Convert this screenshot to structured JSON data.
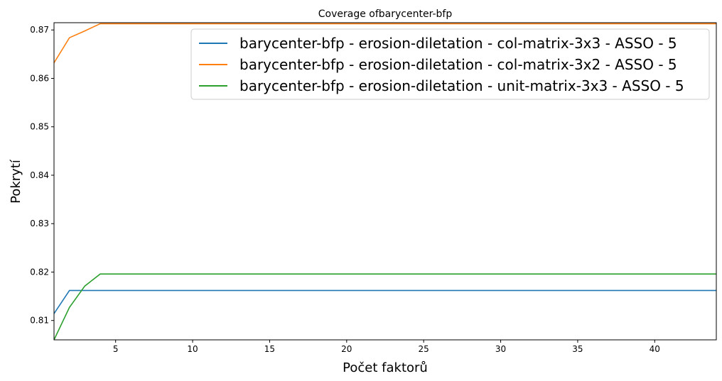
{
  "chart_data": {
    "type": "line",
    "title": "Coverage ofbarycenter-bfp",
    "xlabel": "Počet faktorů",
    "ylabel": "Pokrytí",
    "xlim": [
      1,
      44
    ],
    "ylim": [
      0.806,
      0.8715
    ],
    "xticks": [
      5,
      10,
      15,
      20,
      25,
      30,
      35,
      40
    ],
    "yticks": [
      0.81,
      0.82,
      0.83,
      0.84,
      0.85,
      0.86,
      0.87
    ],
    "grid": false,
    "legend_position": "top-right",
    "series": [
      {
        "name": "barycenter-bfp - erosion-diletation - col-matrix-3x3 - ASSO - 5",
        "color": "#1f77b4",
        "x": [
          1,
          2,
          3,
          4,
          44
        ],
        "y": [
          0.8114,
          0.8162,
          0.8162,
          0.8162,
          0.8162
        ]
      },
      {
        "name": "barycenter-bfp - erosion-diletation - col-matrix-3x2 - ASSO - 5",
        "color": "#ff7f0e",
        "x": [
          1,
          2,
          3,
          4,
          44
        ],
        "y": [
          0.8632,
          0.8684,
          0.8698,
          0.8713,
          0.8713
        ]
      },
      {
        "name": "barycenter-bfp - erosion-diletation - unit-matrix-3x3 - ASSO - 5",
        "color": "#2ca02c",
        "x": [
          1,
          2,
          3,
          4,
          44
        ],
        "y": [
          0.806,
          0.8127,
          0.8171,
          0.8196,
          0.8196
        ]
      }
    ]
  }
}
